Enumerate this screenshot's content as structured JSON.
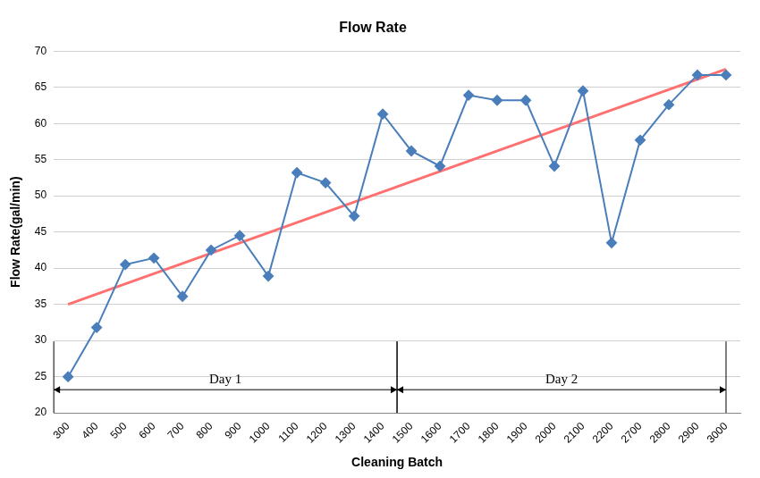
{
  "chart_data": {
    "type": "line",
    "title": "Flow Rate",
    "x_label": "Cleaning Batch",
    "y_label": "Flow Rate(gal/min)",
    "categories": [
      "300",
      "400",
      "500",
      "600",
      "700",
      "800",
      "900",
      "1000",
      "1100",
      "1200",
      "1300",
      "1400",
      "1500",
      "1600",
      "1700",
      "1800",
      "1900",
      "2000",
      "2100",
      "2200",
      "2700",
      "2800",
      "2900",
      "3000"
    ],
    "series": [
      {
        "color": "#4a7ebb",
        "marker": "diamond",
        "line_style": "solid",
        "values": [
          25,
          31.8,
          40.5,
          41.4,
          36.1,
          42.5,
          44.5,
          38.9,
          53.2,
          51.8,
          47.2,
          61.3,
          56.2,
          54.1,
          63.9,
          63.2,
          63.2,
          54.1,
          64.5,
          43.5,
          57.7,
          62.6,
          66.7,
          66.7
        ]
      },
      {
        "color": "#ff7070",
        "marker": "none",
        "line_style": "solid",
        "values": [
          35,
          null,
          null,
          null,
          null,
          null,
          null,
          null,
          null,
          null,
          null,
          null,
          null,
          null,
          null,
          null,
          null,
          null,
          null,
          null,
          null,
          null,
          null,
          67.5
        ]
      }
    ],
    "ylim": [
      20,
      70
    ],
    "yticks": [
      20,
      25,
      30,
      35,
      40,
      45,
      50,
      55,
      60,
      65,
      70
    ],
    "grid": true,
    "annotations": [
      {
        "text": "Day 1",
        "from": "300",
        "to": "1400"
      },
      {
        "text": "Day 2",
        "from": "1500",
        "to": "3000"
      }
    ]
  }
}
